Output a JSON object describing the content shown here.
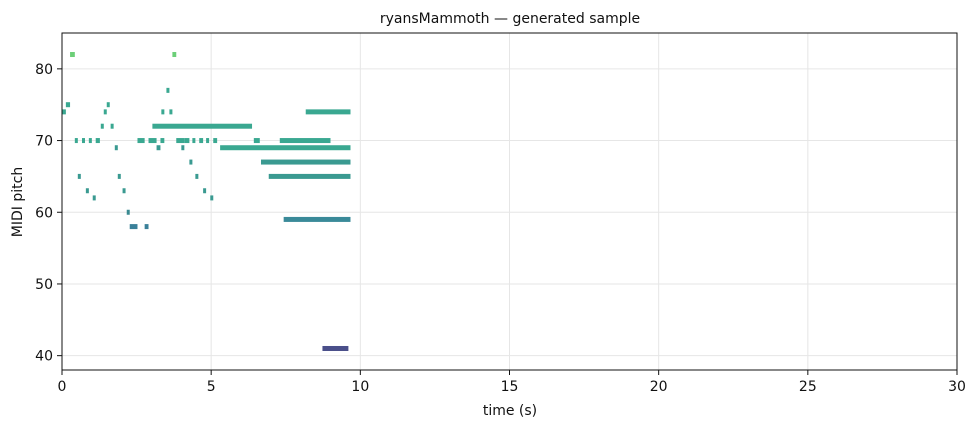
{
  "chart_data": {
    "type": "piano-roll",
    "title": "ryansMammoth — generated sample",
    "xlabel": "time (s)",
    "ylabel": "MIDI pitch",
    "xlim": [
      0,
      30
    ],
    "ylim": [
      38,
      85
    ],
    "xticks": [
      0,
      5,
      10,
      15,
      20,
      25,
      30
    ],
    "yticks": [
      40,
      50,
      60,
      70,
      80
    ],
    "grid": true,
    "notes": [
      {
        "start": 0.0,
        "end": 0.13,
        "pitch": 74,
        "color": "#3aa891"
      },
      {
        "start": 0.13,
        "end": 0.27,
        "pitch": 75,
        "color": "#3aa891"
      },
      {
        "start": 0.27,
        "end": 0.43,
        "pitch": 82,
        "color": "#6ccf78"
      },
      {
        "start": 0.43,
        "end": 0.53,
        "pitch": 70,
        "color": "#3aa891"
      },
      {
        "start": 0.53,
        "end": 0.63,
        "pitch": 65,
        "color": "#3a9a91"
      },
      {
        "start": 0.67,
        "end": 0.77,
        "pitch": 70,
        "color": "#3aa891"
      },
      {
        "start": 0.8,
        "end": 0.9,
        "pitch": 63,
        "color": "#3a9a91"
      },
      {
        "start": 0.9,
        "end": 1.0,
        "pitch": 70,
        "color": "#3aa891"
      },
      {
        "start": 1.03,
        "end": 1.13,
        "pitch": 62,
        "color": "#3a9a91"
      },
      {
        "start": 1.13,
        "end": 1.27,
        "pitch": 70,
        "color": "#3aa891"
      },
      {
        "start": 1.3,
        "end": 1.4,
        "pitch": 72,
        "color": "#3aa891"
      },
      {
        "start": 1.4,
        "end": 1.5,
        "pitch": 74,
        "color": "#3aa891"
      },
      {
        "start": 1.5,
        "end": 1.6,
        "pitch": 75,
        "color": "#3aa891"
      },
      {
        "start": 1.63,
        "end": 1.73,
        "pitch": 72,
        "color": "#3aa891"
      },
      {
        "start": 1.77,
        "end": 1.87,
        "pitch": 69,
        "color": "#3a9a91"
      },
      {
        "start": 1.87,
        "end": 1.97,
        "pitch": 65,
        "color": "#3a9a91"
      },
      {
        "start": 2.03,
        "end": 2.13,
        "pitch": 63,
        "color": "#3a9a91"
      },
      {
        "start": 2.17,
        "end": 2.27,
        "pitch": 60,
        "color": "#3a8a91"
      },
      {
        "start": 2.27,
        "end": 2.53,
        "pitch": 58,
        "color": "#3a8099"
      },
      {
        "start": 2.53,
        "end": 2.77,
        "pitch": 70,
        "color": "#3aa891"
      },
      {
        "start": 2.77,
        "end": 2.9,
        "pitch": 58,
        "color": "#3a8099"
      },
      {
        "start": 2.9,
        "end": 3.17,
        "pitch": 70,
        "color": "#3aa891"
      },
      {
        "start": 3.03,
        "end": 6.37,
        "pitch": 72,
        "color": "#3aa891"
      },
      {
        "start": 3.17,
        "end": 3.3,
        "pitch": 69,
        "color": "#3a9a91"
      },
      {
        "start": 3.3,
        "end": 3.43,
        "pitch": 70,
        "color": "#3aa891"
      },
      {
        "start": 3.33,
        "end": 3.43,
        "pitch": 74,
        "color": "#3aa891"
      },
      {
        "start": 3.5,
        "end": 3.6,
        "pitch": 77,
        "color": "#3aa891"
      },
      {
        "start": 3.6,
        "end": 3.7,
        "pitch": 74,
        "color": "#3aa891"
      },
      {
        "start": 3.7,
        "end": 3.83,
        "pitch": 82,
        "color": "#6ccf78"
      },
      {
        "start": 3.83,
        "end": 4.1,
        "pitch": 70,
        "color": "#3aa891"
      },
      {
        "start": 4.0,
        "end": 4.1,
        "pitch": 69,
        "color": "#3a9a91"
      },
      {
        "start": 4.1,
        "end": 4.27,
        "pitch": 70,
        "color": "#3aa891"
      },
      {
        "start": 4.27,
        "end": 4.37,
        "pitch": 67,
        "color": "#3a9a91"
      },
      {
        "start": 4.37,
        "end": 4.47,
        "pitch": 70,
        "color": "#3aa891"
      },
      {
        "start": 4.47,
        "end": 4.57,
        "pitch": 65,
        "color": "#3a9a91"
      },
      {
        "start": 4.6,
        "end": 4.73,
        "pitch": 70,
        "color": "#3aa891"
      },
      {
        "start": 4.73,
        "end": 4.83,
        "pitch": 63,
        "color": "#3a9a91"
      },
      {
        "start": 4.83,
        "end": 4.93,
        "pitch": 70,
        "color": "#3aa891"
      },
      {
        "start": 4.97,
        "end": 5.07,
        "pitch": 62,
        "color": "#3a9a91"
      },
      {
        "start": 5.07,
        "end": 5.2,
        "pitch": 70,
        "color": "#3aa891"
      },
      {
        "start": 5.3,
        "end": 9.67,
        "pitch": 69,
        "color": "#3aa891"
      },
      {
        "start": 6.43,
        "end": 6.63,
        "pitch": 70,
        "color": "#3aa891"
      },
      {
        "start": 6.67,
        "end": 9.67,
        "pitch": 67,
        "color": "#3a9a91"
      },
      {
        "start": 6.93,
        "end": 9.67,
        "pitch": 65,
        "color": "#3a9a91"
      },
      {
        "start": 7.3,
        "end": 9.0,
        "pitch": 70,
        "color": "#3aa891"
      },
      {
        "start": 7.43,
        "end": 9.67,
        "pitch": 59,
        "color": "#3a8a99"
      },
      {
        "start": 8.17,
        "end": 9.67,
        "pitch": 74,
        "color": "#3aa891"
      },
      {
        "start": 8.73,
        "end": 9.6,
        "pitch": 41,
        "color": "#4a4f8a"
      }
    ]
  }
}
